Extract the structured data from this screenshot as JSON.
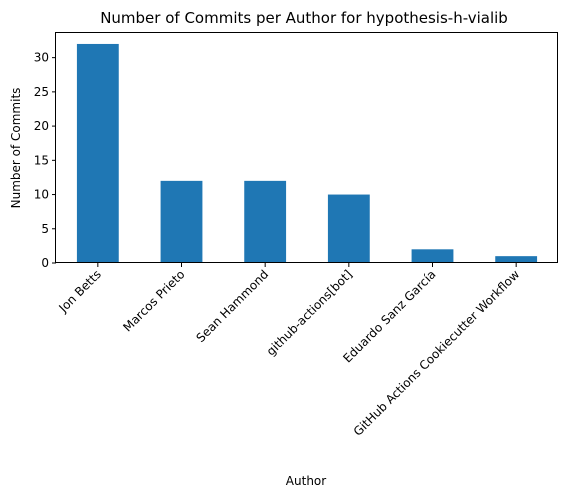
{
  "chart_data": {
    "type": "bar",
    "title": "Number of Commits per Author for hypothesis-h-vialib",
    "xlabel": "Author",
    "ylabel": "Number of Commits",
    "categories": [
      "Jon Betts",
      "Marcos Prieto",
      "Sean Hammond",
      "github-actions[bot]",
      "Eduardo Sanz García",
      "GitHub Actions Cookiecutter Workflow"
    ],
    "values": [
      32,
      12,
      12,
      10,
      2,
      1
    ],
    "yticks": [
      0,
      5,
      10,
      15,
      20,
      25,
      30
    ],
    "ylim": [
      0,
      33.6
    ],
    "grid": false,
    "legend": "none",
    "bar_color": "#1f77b4"
  }
}
